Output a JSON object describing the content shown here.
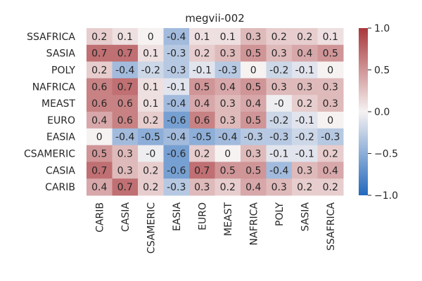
{
  "chart_data": {
    "type": "heatmap",
    "title": "megvii-002",
    "xlabel": "",
    "ylabel": "",
    "rows": [
      "SSAFRICA",
      "SASIA",
      "POLY",
      "NAFRICA",
      "MEAST",
      "EURO",
      "EASIA",
      "CSAMERIC",
      "CASIA",
      "CARIB"
    ],
    "columns": [
      "CARIB",
      "CASIA",
      "CSAMERIC",
      "EASIA",
      "EURO",
      "MEAST",
      "NAFRICA",
      "POLY",
      "SASIA",
      "SSAFRICA"
    ],
    "values": [
      [
        0.2,
        0.1,
        0,
        -0.4,
        0.1,
        0.1,
        0.3,
        0.2,
        0.2,
        0.1
      ],
      [
        0.7,
        0.7,
        0.1,
        -0.3,
        0.2,
        0.3,
        0.5,
        0.3,
        0.4,
        0.5
      ],
      [
        0.2,
        -0.4,
        -0.2,
        -0.3,
        -0.1,
        -0.3,
        0,
        -0.2,
        -0.1,
        0
      ],
      [
        0.6,
        0.7,
        0.1,
        -0.1,
        0.5,
        0.4,
        0.5,
        0.3,
        0.3,
        0.3
      ],
      [
        0.6,
        0.6,
        0.1,
        -0.4,
        0.4,
        0.3,
        0.4,
        -0.04,
        0.2,
        0.3
      ],
      [
        0.4,
        0.6,
        0.2,
        -0.6,
        0.6,
        0.3,
        0.5,
        -0.2,
        -0.1,
        0
      ],
      [
        0,
        -0.4,
        -0.5,
        -0.4,
        -0.5,
        -0.4,
        -0.3,
        -0.3,
        -0.2,
        -0.3
      ],
      [
        0.5,
        0.3,
        -0.04,
        -0.6,
        0.2,
        0,
        0.3,
        -0.1,
        -0.1,
        0.2
      ],
      [
        0.7,
        0.3,
        0.2,
        -0.6,
        0.7,
        0.5,
        0.5,
        -0.4,
        0.3,
        0.4
      ],
      [
        0.4,
        0.7,
        0.2,
        -0.3,
        0.3,
        0.2,
        0.4,
        0.3,
        0.2,
        0.2
      ]
    ],
    "labels": [
      [
        "0.2",
        "0.1",
        "0",
        "-0.4",
        "0.1",
        "0.1",
        "0.3",
        "0.2",
        "0.2",
        "0.1"
      ],
      [
        "0.7",
        "0.7",
        "0.1",
        "-0.3",
        "0.2",
        "0.3",
        "0.5",
        "0.3",
        "0.4",
        "0.5"
      ],
      [
        "0.2",
        "-0.4",
        "-0.2",
        "-0.3",
        "-0.1",
        "-0.3",
        "0",
        "-0.2",
        "-0.1",
        "0"
      ],
      [
        "0.6",
        "0.7",
        "0.1",
        "-0.1",
        "0.5",
        "0.4",
        "0.5",
        "0.3",
        "0.3",
        "0.3"
      ],
      [
        "0.6",
        "0.6",
        "0.1",
        "-0.4",
        "0.4",
        "0.3",
        "0.4",
        "-0",
        "0.2",
        "0.3"
      ],
      [
        "0.4",
        "0.6",
        "0.2",
        "-0.6",
        "0.6",
        "0.3",
        "0.5",
        "-0.2",
        "-0.1",
        "0"
      ],
      [
        "0",
        "-0.4",
        "-0.5",
        "-0.4",
        "-0.5",
        "-0.4",
        "-0.3",
        "-0.3",
        "-0.2",
        "-0.3"
      ],
      [
        "0.5",
        "0.3",
        "-0",
        "-0.6",
        "0.2",
        "0",
        "0.3",
        "-0.1",
        "-0.1",
        "0.2"
      ],
      [
        "0.7",
        "0.3",
        "0.2",
        "-0.6",
        "0.7",
        "0.5",
        "0.5",
        "-0.4",
        "0.3",
        "0.4"
      ],
      [
        "0.4",
        "0.7",
        "0.2",
        "-0.3",
        "0.3",
        "0.2",
        "0.4",
        "0.3",
        "0.2",
        "0.2"
      ]
    ],
    "colorbar": {
      "vmin": -1.0,
      "vmax": 1.0,
      "ticks": [
        1.0,
        0.5,
        0.0,
        -0.5,
        -1.0
      ],
      "tick_labels": [
        "1.0",
        "0.5",
        "0.0",
        "−0.5",
        "−1.0"
      ],
      "colormap": "vlag",
      "colors": {
        "low": "#2369bd",
        "mid": "#f6f2f2",
        "high": "#a9373b"
      }
    },
    "grid": false
  }
}
